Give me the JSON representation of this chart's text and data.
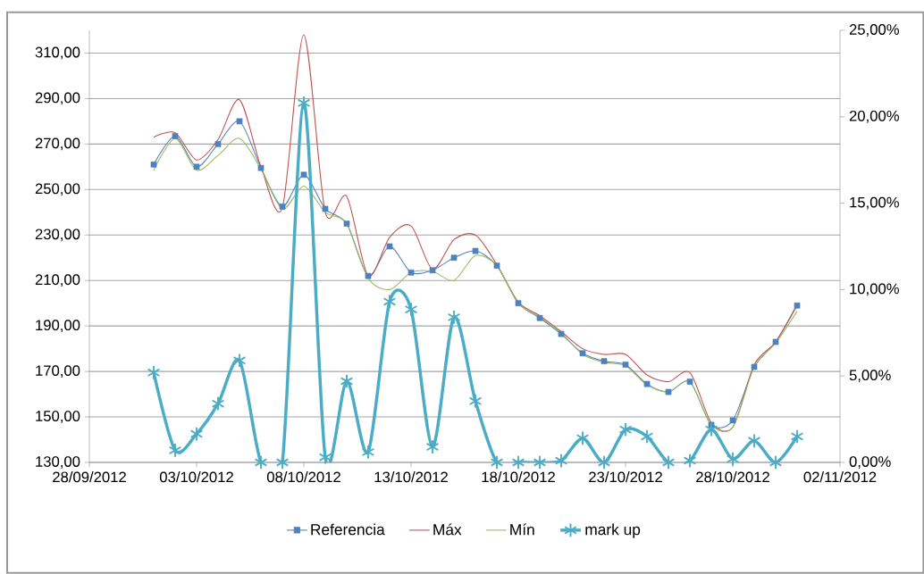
{
  "chart_data": {
    "type": "line",
    "x": [
      "2012-10-01",
      "2012-10-02",
      "2012-10-03",
      "2012-10-04",
      "2012-10-05",
      "2012-10-06",
      "2012-10-07",
      "2012-10-08",
      "2012-10-09",
      "2012-10-10",
      "2012-10-11",
      "2012-10-12",
      "2012-10-13",
      "2012-10-14",
      "2012-10-15",
      "2012-10-16",
      "2012-10-17",
      "2012-10-18",
      "2012-10-19",
      "2012-10-20",
      "2012-10-21",
      "2012-10-22",
      "2012-10-23",
      "2012-10-24",
      "2012-10-25",
      "2012-10-26",
      "2012-10-27",
      "2012-10-28",
      "2012-10-29",
      "2012-10-30",
      "2012-10-31"
    ],
    "series": [
      {
        "name": "Referencia",
        "color": "#4f81bd",
        "marker": "square",
        "values": [
          261,
          273.5,
          260,
          270,
          280,
          259.5,
          242.5,
          256.5,
          241.5,
          235,
          212,
          225,
          213.5,
          214.5,
          220,
          223,
          216.5,
          200,
          193.5,
          186.5,
          178,
          174.5,
          173,
          164.5,
          161,
          165.5,
          146.5,
          148.5,
          172,
          183,
          199
        ]
      },
      {
        "name": "Máx",
        "color": "#c0504d",
        "marker": "none",
        "values": [
          273,
          275,
          263,
          272,
          289.5,
          260,
          242,
          318,
          240,
          247,
          212,
          229,
          234,
          215,
          228,
          230,
          217,
          200.5,
          194.5,
          187.5,
          180,
          177.5,
          177.5,
          168.5,
          165.5,
          169.5,
          147.5,
          145.5,
          173,
          183,
          199.5
        ]
      },
      {
        "name": "Mín",
        "color": "#9bbb59",
        "marker": "none",
        "values": [
          258.5,
          272.5,
          258.5,
          265,
          272.5,
          259,
          241.5,
          251.5,
          240,
          235,
          211,
          206,
          213.5,
          214,
          210,
          221,
          216.5,
          200,
          194,
          187,
          177.5,
          174,
          172.5,
          164,
          161,
          165.5,
          146.5,
          145.5,
          172,
          182.5,
          196.5
        ]
      },
      {
        "name": "mark up",
        "color": "#4bacc6",
        "marker": "cross",
        "axis": "y2",
        "values": [
          5.2,
          0.7,
          1.65,
          3.4,
          5.9,
          0,
          0,
          20.8,
          0.3,
          4.7,
          0.6,
          9.3,
          8.85,
          0.9,
          8.4,
          3.55,
          0,
          0,
          0,
          0.1,
          1.4,
          0,
          1.9,
          1.5,
          0,
          0.1,
          1.9,
          0.2,
          1.25,
          0,
          1.5
        ]
      }
    ],
    "xlim": [
      "2012-09-28",
      "2012-11-02"
    ],
    "xticks": [
      {
        "value": "2012-09-28",
        "label": "28/09/2012"
      },
      {
        "value": "2012-10-03",
        "label": "03/10/2012"
      },
      {
        "value": "2012-10-08",
        "label": "08/10/2012"
      },
      {
        "value": "2012-10-13",
        "label": "13/10/2012"
      },
      {
        "value": "2012-10-18",
        "label": "18/10/2012"
      },
      {
        "value": "2012-10-23",
        "label": "23/10/2012"
      },
      {
        "value": "2012-10-28",
        "label": "28/10/2012"
      },
      {
        "value": "2012-11-02",
        "label": "02/11/2012"
      }
    ],
    "ylim": [
      130,
      320
    ],
    "yticks": [
      {
        "value": 130,
        "label": "130,00"
      },
      {
        "value": 150,
        "label": "150,00"
      },
      {
        "value": 170,
        "label": "170,00"
      },
      {
        "value": 190,
        "label": "190,00"
      },
      {
        "value": 210,
        "label": "210,00"
      },
      {
        "value": 230,
        "label": "230,00"
      },
      {
        "value": 250,
        "label": "250,00"
      },
      {
        "value": 270,
        "label": "270,00"
      },
      {
        "value": 290,
        "label": "290,00"
      },
      {
        "value": 310,
        "label": "310,00"
      }
    ],
    "y2lim": [
      0,
      25
    ],
    "y2ticks": [
      {
        "value": 0,
        "label": "0,00%"
      },
      {
        "value": 5,
        "label": "5,00%"
      },
      {
        "value": 10,
        "label": "10,00%"
      },
      {
        "value": 15,
        "label": "15,00%"
      },
      {
        "value": 20,
        "label": "20,00%"
      },
      {
        "value": 25,
        "label": "25,00%"
      }
    ],
    "grid": "y",
    "legend": "bottom"
  }
}
